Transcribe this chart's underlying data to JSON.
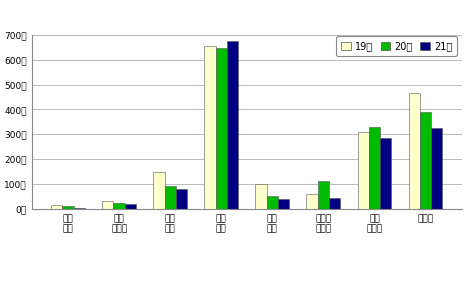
{
  "categories": [
    "路上\n強盗",
    "ひっ\nたくり",
    "バイ\nク盗",
    "自転\n車盗",
    "自動\n車盗",
    "自販機\nねらい",
    "車上\nねらい",
    "侵入盗"
  ],
  "series": {
    "19年": [
      15,
      30,
      150,
      655,
      100,
      60,
      310,
      465
    ],
    "20年": [
      10,
      25,
      90,
      645,
      50,
      110,
      330,
      390
    ],
    "21年": [
      5,
      20,
      80,
      675,
      40,
      45,
      285,
      325
    ]
  },
  "colors": {
    "19年": "#FFFFCC",
    "20年": "#00BB00",
    "21年": "#000080"
  },
  "ylim": [
    0,
    700
  ],
  "yticks": [
    0,
    100,
    200,
    300,
    400,
    500,
    600,
    700
  ],
  "ylabel_suffix": "件",
  "background_color": "#ffffff",
  "grid_color": "#bbbbbb",
  "legend_labels": [
    "19年",
    "20年",
    "21年"
  ],
  "bar_width": 0.22,
  "title": ""
}
